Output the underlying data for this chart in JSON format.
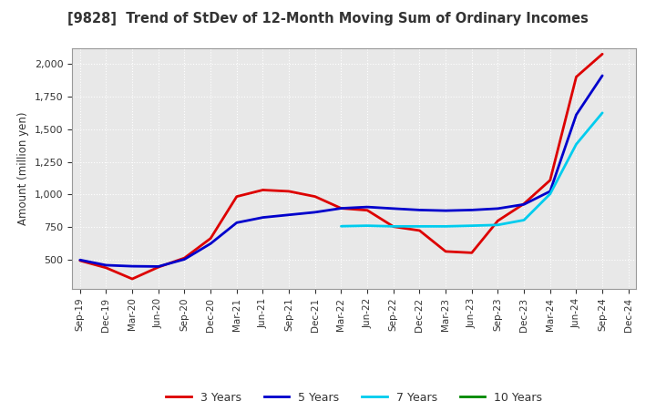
{
  "title": "[9828]  Trend of StDev of 12-Month Moving Sum of Ordinary Incomes",
  "ylabel": "Amount (million yen)",
  "background_color": "#ffffff",
  "plot_bg_color": "#e8e8e8",
  "grid_color": "#ffffff",
  "title_color": "#333333",
  "x_labels": [
    "Sep-19",
    "Dec-19",
    "Mar-20",
    "Jun-20",
    "Sep-20",
    "Dec-20",
    "Mar-21",
    "Jun-21",
    "Sep-21",
    "Dec-21",
    "Mar-22",
    "Jun-22",
    "Sep-22",
    "Dec-22",
    "Mar-23",
    "Jun-23",
    "Sep-23",
    "Dec-23",
    "Mar-24",
    "Jun-24",
    "Sep-24",
    "Dec-24"
  ],
  "ylim": [
    280,
    2120
  ],
  "yticks": [
    500,
    750,
    1000,
    1250,
    1500,
    1750,
    2000
  ],
  "series": [
    {
      "name": "3 Years",
      "color": "#dd0000",
      "linewidth": 2.0,
      "data_x": [
        0,
        1,
        2,
        3,
        4,
        5,
        6,
        7,
        8,
        9,
        10,
        11,
        12,
        13,
        14,
        15,
        16,
        17,
        18,
        19,
        20
      ],
      "data_y": [
        495,
        440,
        355,
        445,
        515,
        665,
        985,
        1035,
        1025,
        985,
        895,
        880,
        755,
        725,
        565,
        555,
        800,
        930,
        1110,
        1900,
        2075
      ]
    },
    {
      "name": "5 Years",
      "color": "#0000cc",
      "linewidth": 2.0,
      "data_x": [
        0,
        1,
        2,
        3,
        4,
        5,
        6,
        7,
        8,
        9,
        10,
        11,
        12,
        13,
        14,
        15,
        16,
        17,
        18,
        19,
        20
      ],
      "data_y": [
        500,
        460,
        452,
        450,
        505,
        625,
        785,
        825,
        845,
        865,
        895,
        905,
        893,
        882,
        877,
        882,
        893,
        925,
        1025,
        1610,
        1910
      ]
    },
    {
      "name": "7 Years",
      "color": "#00ccee",
      "linewidth": 2.0,
      "data_x": [
        10,
        11,
        12,
        13,
        14,
        15,
        16,
        17,
        18,
        19,
        20
      ],
      "data_y": [
        758,
        762,
        757,
        757,
        757,
        762,
        768,
        805,
        1005,
        1385,
        1625
      ]
    },
    {
      "name": "10 Years",
      "color": "#008800",
      "linewidth": 2.0,
      "data_x": [],
      "data_y": []
    }
  ]
}
